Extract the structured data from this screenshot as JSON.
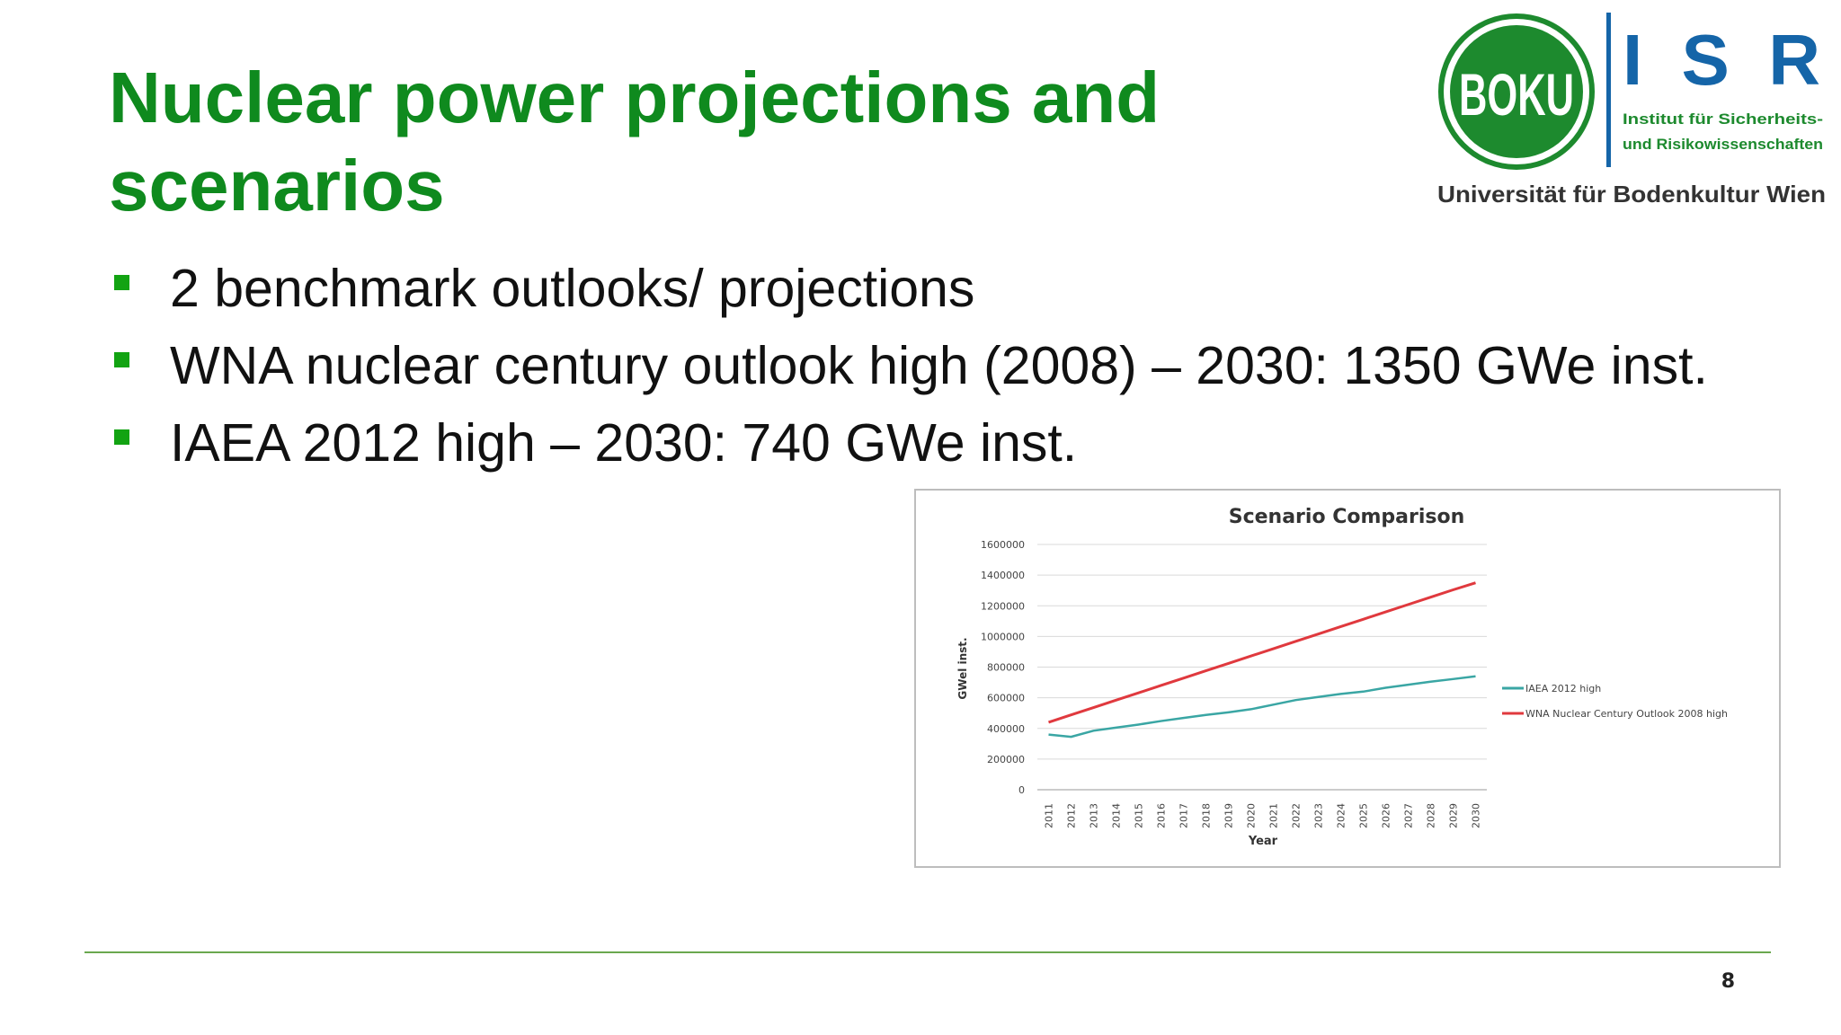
{
  "slide": {
    "title": "Nuclear power projections and scenarios",
    "bullets": [
      "2 benchmark outlooks/ projections",
      "WNA nuclear century outlook high (2008) – 2030: 1350 GWe inst.",
      "IAEA 2012 high – 2030: 740 GWe inst."
    ],
    "page_number": "8"
  },
  "logo": {
    "seal_text": "BOKU",
    "brand": "ISR",
    "institute_line1": "Institut  für  Sicherheits-",
    "institute_line2": "und Risikowissenschaften",
    "university": "Universität für Bodenkultur Wien",
    "colors": {
      "green": "#1d8a2e",
      "blue": "#1565a8"
    }
  },
  "chart_data": {
    "type": "line",
    "title": "Scenario Comparison",
    "xlabel": "Year",
    "ylabel": "GWel inst.",
    "x": [
      "2011",
      "2012",
      "2013",
      "2014",
      "2015",
      "2016",
      "2017",
      "2018",
      "2019",
      "2020",
      "2021",
      "2022",
      "2023",
      "2024",
      "2025",
      "2026",
      "2027",
      "2028",
      "2029",
      "2030"
    ],
    "ylim": [
      0,
      1600000
    ],
    "yticks": [
      "0",
      "200000",
      "400000",
      "600000",
      "800000",
      "1000000",
      "1200000",
      "1400000",
      "1600000"
    ],
    "grid": true,
    "legend_position": "right",
    "series": [
      {
        "name": "IAEA 2012 high",
        "color": "#3aa6a4",
        "values": [
          360000,
          345000,
          385000,
          405000,
          425000,
          448000,
          468000,
          488000,
          505000,
          525000,
          555000,
          585000,
          605000,
          625000,
          640000,
          665000,
          685000,
          705000,
          722000,
          740000
        ]
      },
      {
        "name": "WNA Nuclear Century Outlook 2008 high",
        "color": "#e0393e",
        "values": [
          440000,
          488000,
          536000,
          584000,
          632000,
          680000,
          728000,
          776000,
          824000,
          872000,
          920000,
          968000,
          1016000,
          1064000,
          1112000,
          1160000,
          1208000,
          1256000,
          1304000,
          1350000
        ]
      }
    ]
  }
}
